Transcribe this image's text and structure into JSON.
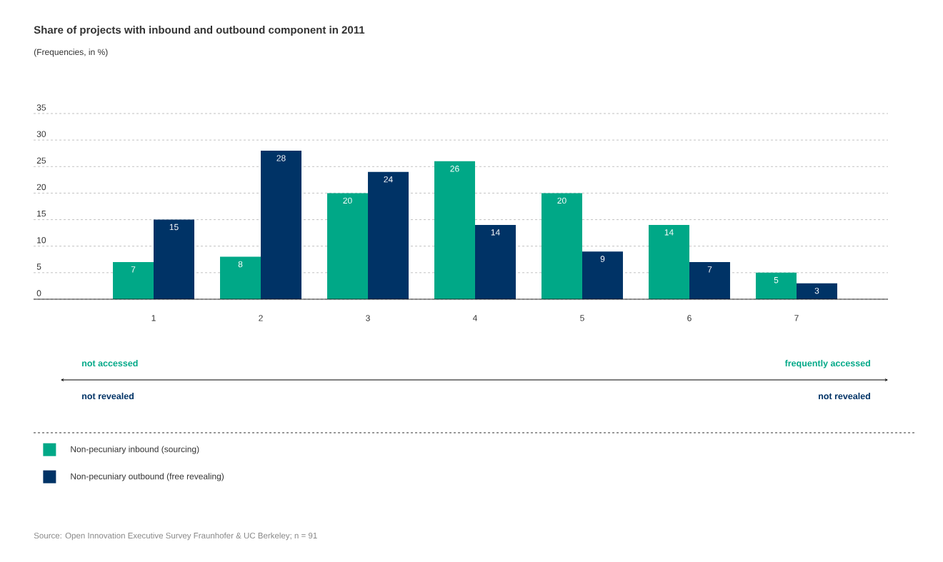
{
  "chart_data": {
    "type": "bar",
    "title": "Share of projects with inbound and outbound component in 2011",
    "subtitle": "(Frequencies, in %)",
    "categories": [
      "1",
      "2",
      "3",
      "4",
      "5",
      "6",
      "7"
    ],
    "series": [
      {
        "name": "Non-pecuniary inbound (sourcing)",
        "color": "#00a887",
        "values": [
          7,
          8,
          20,
          26,
          20,
          14,
          5
        ]
      },
      {
        "name": "Non-pecuniary outbound (free revealing)",
        "color": "#003366",
        "values": [
          15,
          28,
          24,
          14,
          9,
          7,
          3
        ]
      }
    ],
    "ylim": [
      0,
      35
    ],
    "yticks": [
      0,
      5,
      10,
      15,
      20,
      25,
      30,
      35
    ],
    "grid": "y",
    "data_labels": true,
    "legend": "bottom",
    "annotations": [
      "not accessed",
      "not revealed",
      "frequently accessed",
      "not revealed",
      "Source: Open Innovation Executive Survey Fraunhofer & UC Berkeley; n = 91"
    ]
  }
}
